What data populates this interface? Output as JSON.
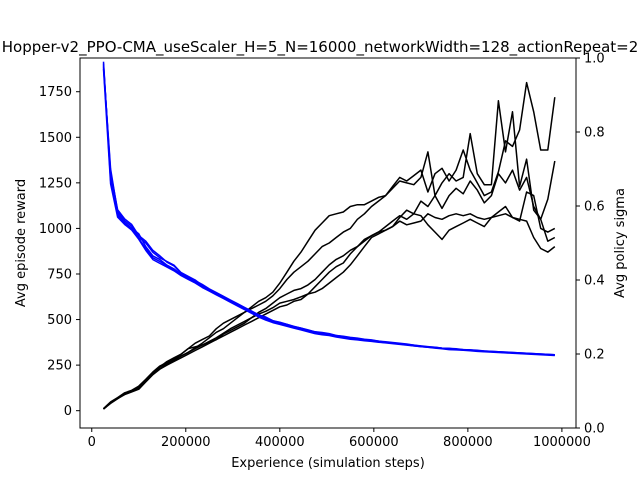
{
  "chart_data": {
    "type": "line",
    "title": "Hopper-v2_PPO-CMA_useScaler_H=5_N=16000_networkWidth=128_actionRepeat=2",
    "xlabel": "Experience (simulation steps)",
    "ylabel": "Avg episode reward",
    "y2label": "Avg policy sigma",
    "xlim": [
      -25000,
      1030000
    ],
    "ylim": [
      -95,
      1935
    ],
    "y2lim": [
      0.0,
      1.0
    ],
    "xticks": [
      0,
      200000,
      400000,
      600000,
      800000,
      1000000
    ],
    "xtick_labels": [
      "0",
      "200000",
      "400000",
      "600000",
      "800000",
      "1000000"
    ],
    "yticks": [
      0,
      250,
      500,
      750,
      1000,
      1250,
      1500,
      1750
    ],
    "ytick_labels": [
      "0",
      "250",
      "500",
      "750",
      "1000",
      "1250",
      "1500",
      "1750"
    ],
    "y2ticks": [
      0.0,
      0.2,
      0.4,
      0.6,
      0.8,
      1.0
    ],
    "y2tick_labels": [
      "0.0",
      "0.2",
      "0.4",
      "0.6",
      "0.8",
      "1.0"
    ],
    "grid": false,
    "colors": {
      "reward": "#000000",
      "sigma": "#0000ff",
      "right_axis": "#0000ff"
    },
    "x": [
      25000,
      40000,
      55000,
      70000,
      85000,
      100000,
      115000,
      130000,
      145000,
      160000,
      175000,
      190000,
      205000,
      220000,
      235000,
      250000,
      265000,
      280000,
      295000,
      310000,
      325000,
      340000,
      355000,
      370000,
      385000,
      400000,
      415000,
      430000,
      445000,
      460000,
      475000,
      490000,
      505000,
      520000,
      535000,
      550000,
      565000,
      580000,
      595000,
      610000,
      625000,
      640000,
      655000,
      670000,
      685000,
      700000,
      715000,
      730000,
      745000,
      760000,
      775000,
      790000,
      805000,
      820000,
      835000,
      850000,
      865000,
      880000,
      895000,
      910000,
      925000,
      940000,
      955000,
      970000,
      985000
    ],
    "series": [
      {
        "axis": "left",
        "values": [
          10,
          40,
          65,
          90,
          105,
          120,
          160,
          200,
          240,
          260,
          280,
          300,
          320,
          345,
          370,
          400,
          430,
          450,
          480,
          510,
          540,
          570,
          600,
          620,
          650,
          700,
          760,
          820,
          870,
          930,
          990,
          1030,
          1070,
          1080,
          1090,
          1120,
          1130,
          1130,
          1150,
          1170,
          1180,
          1220,
          1260,
          1250,
          1240,
          1280,
          1420,
          1180,
          1250,
          1300,
          1260,
          1280,
          1520,
          1300,
          1240,
          1240,
          1700,
          1420,
          1640,
          1230,
          1380,
          1100,
          1050,
          1160,
          1370
        ]
      },
      {
        "axis": "left",
        "values": [
          10,
          45,
          70,
          95,
          110,
          130,
          170,
          210,
          240,
          270,
          290,
          310,
          340,
          370,
          390,
          410,
          450,
          480,
          500,
          520,
          540,
          560,
          580,
          600,
          630,
          670,
          720,
          760,
          790,
          820,
          860,
          900,
          920,
          950,
          980,
          1000,
          1050,
          1080,
          1120,
          1150,
          1180,
          1230,
          1280,
          1260,
          1290,
          1320,
          1200,
          1300,
          1330,
          1260,
          1320,
          1430,
          1320,
          1250,
          1180,
          1200,
          1310,
          1480,
          1450,
          1540,
          1800,
          1640,
          1430,
          1430,
          1720
        ]
      },
      {
        "axis": "left",
        "values": [
          8,
          42,
          68,
          92,
          108,
          125,
          165,
          205,
          230,
          255,
          275,
          300,
          320,
          340,
          360,
          380,
          400,
          425,
          450,
          470,
          490,
          510,
          530,
          545,
          565,
          590,
          600,
          610,
          625,
          640,
          680,
          720,
          760,
          790,
          810,
          860,
          900,
          940,
          960,
          980,
          990,
          1010,
          1060,
          1100,
          1080,
          1150,
          1120,
          1180,
          1110,
          1180,
          1220,
          1190,
          1260,
          1210,
          1140,
          1180,
          1300,
          1250,
          1320,
          1210,
          1280,
          1120,
          1050,
          930,
          950
        ]
      },
      {
        "axis": "left",
        "values": [
          12,
          48,
          72,
          98,
          112,
          135,
          172,
          212,
          245,
          265,
          285,
          310,
          340,
          350,
          360,
          375,
          390,
          420,
          440,
          460,
          480,
          510,
          540,
          560,
          590,
          620,
          640,
          660,
          670,
          690,
          720,
          760,
          800,
          830,
          850,
          880,
          900,
          930,
          960,
          980,
          1010,
          1040,
          1070,
          1050,
          1080,
          1070,
          1020,
          980,
          940,
          990,
          1010,
          1030,
          1050,
          1030,
          1010,
          1060,
          1090,
          1120,
          1060,
          1040,
          1200,
          1180,
          1000,
          980,
          1000
        ]
      },
      {
        "axis": "left",
        "values": [
          10,
          43,
          67,
          88,
          103,
          118,
          158,
          198,
          228,
          250,
          270,
          290,
          310,
          330,
          350,
          370,
          390,
          410,
          430,
          450,
          470,
          490,
          510,
          530,
          550,
          570,
          580,
          600,
          610,
          640,
          650,
          670,
          700,
          730,
          760,
          800,
          850,
          900,
          950,
          970,
          990,
          1010,
          1040,
          1020,
          1030,
          1040,
          1080,
          1060,
          1050,
          1070,
          1080,
          1070,
          1080,
          1060,
          1050,
          1060,
          1070,
          1080,
          1060,
          1050,
          1040,
          950,
          890,
          870,
          900
        ]
      },
      {
        "axis": "right",
        "values": [
          0.985,
          0.68,
          0.58,
          0.555,
          0.54,
          0.525,
          0.49,
          0.465,
          0.455,
          0.44,
          0.43,
          0.415,
          0.405,
          0.395,
          0.385,
          0.375,
          0.365,
          0.355,
          0.345,
          0.335,
          0.325,
          0.315,
          0.305,
          0.3,
          0.29,
          0.285,
          0.28,
          0.275,
          0.27,
          0.265,
          0.26,
          0.258,
          0.255,
          0.25,
          0.248,
          0.245,
          0.243,
          0.24,
          0.238,
          0.235,
          0.232,
          0.23,
          0.228,
          0.226,
          0.224,
          0.222,
          0.22,
          0.218,
          0.216,
          0.215,
          0.214,
          0.212,
          0.211,
          0.21,
          0.208,
          0.207,
          0.206,
          0.205,
          0.204,
          0.203,
          0.202,
          0.201,
          0.2,
          0.199,
          0.198
        ]
      },
      {
        "axis": "right",
        "values": [
          0.975,
          0.7,
          0.585,
          0.56,
          0.545,
          0.515,
          0.5,
          0.475,
          0.46,
          0.45,
          0.44,
          0.42,
          0.41,
          0.4,
          0.385,
          0.372,
          0.362,
          0.352,
          0.342,
          0.332,
          0.322,
          0.312,
          0.302,
          0.295,
          0.288,
          0.283,
          0.278,
          0.272,
          0.268,
          0.262,
          0.258,
          0.255,
          0.252,
          0.248,
          0.245,
          0.242,
          0.24,
          0.238,
          0.236,
          0.234,
          0.231,
          0.229,
          0.227,
          0.225,
          0.222,
          0.22,
          0.218,
          0.217,
          0.215,
          0.214,
          0.212,
          0.211,
          0.21,
          0.208,
          0.207,
          0.206,
          0.205,
          0.204,
          0.203,
          0.202,
          0.201,
          0.2,
          0.199,
          0.198,
          0.197
        ]
      },
      {
        "axis": "right",
        "values": [
          0.97,
          0.66,
          0.57,
          0.55,
          0.535,
          0.51,
          0.48,
          0.455,
          0.445,
          0.435,
          0.425,
          0.412,
          0.402,
          0.392,
          0.38,
          0.37,
          0.36,
          0.35,
          0.34,
          0.33,
          0.32,
          0.31,
          0.3,
          0.292,
          0.285,
          0.28,
          0.275,
          0.27,
          0.265,
          0.26,
          0.255,
          0.252,
          0.25,
          0.246,
          0.243,
          0.24,
          0.238,
          0.236,
          0.234,
          0.232,
          0.23,
          0.228,
          0.226,
          0.224,
          0.222,
          0.22,
          0.218,
          0.216,
          0.214,
          0.212,
          0.211,
          0.21,
          0.209,
          0.207,
          0.206,
          0.205,
          0.204,
          0.203,
          0.202,
          0.201,
          0.2,
          0.199,
          0.198,
          0.197,
          0.196
        ]
      },
      {
        "axis": "right",
        "values": [
          0.98,
          0.69,
          0.59,
          0.565,
          0.55,
          0.52,
          0.505,
          0.48,
          0.465,
          0.448,
          0.438,
          0.418,
          0.408,
          0.398,
          0.388,
          0.376,
          0.366,
          0.356,
          0.346,
          0.336,
          0.326,
          0.316,
          0.306,
          0.298,
          0.29,
          0.286,
          0.28,
          0.274,
          0.27,
          0.264,
          0.26,
          0.256,
          0.253,
          0.25,
          0.247,
          0.244,
          0.241,
          0.239,
          0.237,
          0.235,
          0.233,
          0.231,
          0.229,
          0.227,
          0.224,
          0.221,
          0.219,
          0.218,
          0.216,
          0.215,
          0.213,
          0.212,
          0.211,
          0.209,
          0.208,
          0.207,
          0.206,
          0.205,
          0.204,
          0.203,
          0.202,
          0.201,
          0.2,
          0.199,
          0.198
        ]
      },
      {
        "axis": "right",
        "values": [
          0.99,
          0.67,
          0.575,
          0.552,
          0.538,
          0.512,
          0.485,
          0.46,
          0.45,
          0.438,
          0.428,
          0.414,
          0.404,
          0.394,
          0.382,
          0.372,
          0.362,
          0.352,
          0.342,
          0.332,
          0.322,
          0.312,
          0.302,
          0.294,
          0.287,
          0.282,
          0.277,
          0.272,
          0.267,
          0.262,
          0.257,
          0.254,
          0.251,
          0.247,
          0.244,
          0.241,
          0.239,
          0.237,
          0.235,
          0.233,
          0.231,
          0.229,
          0.227,
          0.225,
          0.223,
          0.221,
          0.219,
          0.217,
          0.215,
          0.213,
          0.212,
          0.211,
          0.21,
          0.208,
          0.207,
          0.206,
          0.205,
          0.204,
          0.203,
          0.202,
          0.201,
          0.2,
          0.199,
          0.198,
          0.197
        ]
      }
    ]
  }
}
